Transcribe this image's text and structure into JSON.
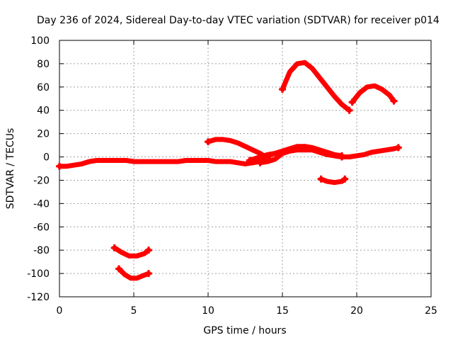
{
  "chart_data": {
    "type": "line",
    "title": "Day 236 of 2024, Sidereal Day-to-day VTEC variation (SDTVAR) for receiver p014",
    "xlabel": "GPS time / hours",
    "ylabel": "SDTVAR / TECUs",
    "xlim": [
      0,
      25
    ],
    "ylim": [
      -120,
      100
    ],
    "xticks": [
      0,
      5,
      10,
      15,
      20,
      25
    ],
    "yticks": [
      -120,
      -100,
      -80,
      -60,
      -40,
      -20,
      0,
      20,
      40,
      60,
      80,
      100
    ],
    "grid": true,
    "series_color": "#ff0000",
    "series": [
      {
        "name": "baseline-early",
        "x": [
          0,
          0.5,
          1,
          1.5,
          2,
          2.5,
          3,
          3.5,
          4,
          4.5,
          5,
          5.5,
          6,
          6.5,
          7,
          7.5,
          8,
          8.5,
          9,
          9.5,
          10,
          10.5,
          11,
          11.5,
          12,
          12.5,
          13,
          13.5,
          14
        ],
        "y": [
          -8,
          -8,
          -7,
          -6,
          -4,
          -3,
          -3,
          -3,
          -3,
          -3,
          -4,
          -4,
          -4,
          -4,
          -4,
          -4,
          -4,
          -3,
          -3,
          -3,
          -3,
          -4,
          -4,
          -4,
          -5,
          -6,
          -5,
          -4,
          -3
        ]
      },
      {
        "name": "baseline-upper",
        "x": [
          12.8,
          13.5,
          14,
          14.5,
          15,
          15.5,
          16,
          16.5,
          17,
          17.5,
          18,
          18.5,
          19,
          19.5,
          20,
          20.5,
          21,
          21.5,
          22,
          22.5,
          22.8
        ],
        "y": [
          -3,
          0,
          2,
          3,
          5,
          7,
          8,
          9,
          8,
          5,
          3,
          1,
          0,
          0,
          1,
          2,
          4,
          5,
          6,
          7,
          8
        ]
      },
      {
        "name": "baseline-lower",
        "x": [
          13.5,
          14,
          14.5,
          15,
          15.5,
          16,
          16.5,
          17,
          17.5,
          18,
          18.5,
          19
        ],
        "y": [
          -5,
          -4,
          -2,
          3,
          5,
          6,
          6,
          6,
          4,
          2,
          1,
          0
        ]
      },
      {
        "name": "arc-10-14",
        "x": [
          10,
          10.5,
          11,
          11.5,
          12,
          12.5,
          13,
          13.5,
          14
        ],
        "y": [
          13,
          15,
          15,
          14,
          12,
          9,
          6,
          3,
          -1
        ]
      },
      {
        "name": "arc-14-19",
        "x": [
          13,
          13.5,
          14,
          14.5,
          15,
          15.5,
          16,
          16.5,
          17,
          17.5,
          18,
          18.5,
          19
        ],
        "y": [
          -4,
          -2,
          1,
          3,
          5,
          7,
          9,
          9,
          8,
          6,
          4,
          2,
          1
        ]
      },
      {
        "name": "arc-15-19.5",
        "x": [
          15,
          15.5,
          16,
          16.5,
          17,
          17.5,
          18,
          18.5,
          19,
          19.5
        ],
        "y": [
          58,
          73,
          80,
          81,
          76,
          68,
          60,
          52,
          45,
          40
        ]
      },
      {
        "name": "arc-19.7-22.5",
        "x": [
          19.7,
          20.2,
          20.7,
          21.2,
          21.7,
          22.2,
          22.5
        ],
        "y": [
          47,
          55,
          60,
          61,
          58,
          53,
          48
        ]
      },
      {
        "name": "arc-17.5-19.2",
        "x": [
          17.6,
          18,
          18.5,
          19,
          19.2
        ],
        "y": [
          -19,
          -21,
          -22,
          -21,
          -19
        ]
      },
      {
        "name": "arc-3.7-6",
        "x": [
          3.7,
          4.2,
          4.7,
          5.2,
          5.7,
          6
        ],
        "y": [
          -78,
          -82,
          -85,
          -85,
          -83,
          -80
        ]
      },
      {
        "name": "arc-4-6",
        "x": [
          4,
          4.4,
          4.8,
          5.2,
          5.6,
          6
        ],
        "y": [
          -96,
          -101,
          -104,
          -104,
          -102,
          -100
        ]
      }
    ]
  }
}
